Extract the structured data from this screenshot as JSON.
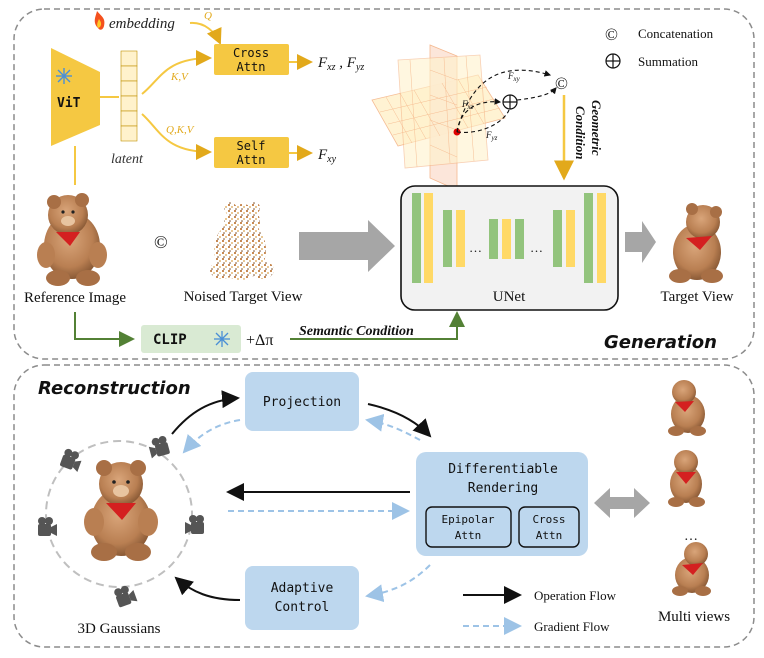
{
  "legend": {
    "concat_symbol": "©",
    "concat_label": "Concatenation",
    "sum_symbol": "⊕",
    "sum_label": "Summation"
  },
  "generation": {
    "section_title": "Generation",
    "embedding_label": "embedding",
    "q_label": "Q",
    "kv_label": "K,V",
    "qkv_label": "Q,K,V",
    "vit_label": "ViT",
    "latent_label": "latent",
    "cross_attn_line1": "Cross",
    "cross_attn_line2": "Attn",
    "self_attn_line1": "Self",
    "self_attn_line2": "Attn",
    "f_xz_yz": "F",
    "f_xz_sub": "xz",
    "f_sep": " , F",
    "f_yz_sub": "yz",
    "f_xy": "F",
    "f_xy_sub": "xy",
    "triplane_fxy": "F",
    "triplane_fxy_sub": "xy",
    "triplane_fxz": "F",
    "triplane_fxz_sub": "xz",
    "triplane_fyz": "F",
    "triplane_fyz_sub": "yz",
    "geometric_line1": "Geometric",
    "geometric_line2": "Condition",
    "reference_label": "Reference Image",
    "concat_symbol": "©",
    "noised_label": "Noised Target View",
    "unet_label": "UNet",
    "dots": "…",
    "target_label": "Target View",
    "clip_label": "CLIP",
    "delta_label": "+Δπ",
    "semantic_label": "Semantic Condition"
  },
  "reconstruction": {
    "section_title": "Reconstruction",
    "projection_label": "Projection",
    "diff_line1": "Differentiable",
    "diff_line2": "Rendering",
    "epipolar_line1": "Epipolar",
    "epipolar_line2": "Attn",
    "cross_line1": "Cross",
    "cross_line2": "Attn",
    "adaptive_line1": "Adaptive",
    "adaptive_line2": "Control",
    "gaussians_label": "3D Gaussians",
    "operation_flow_label": "Operation Flow",
    "gradient_flow_label": "Gradient Flow",
    "multi_views_label": "Multi views",
    "dots": "…"
  },
  "colors": {
    "yellow": "#f5c842",
    "yellow_dark": "#e2a91b",
    "green": "#538135",
    "unet_green": "#93c47d",
    "unet_yellow": "#ffd966",
    "blue_box": "#bdd7ee",
    "dash_blue": "#9dc3e6",
    "grey_arrow": "#a6a6a6",
    "clip_green": "#d9ead3"
  }
}
